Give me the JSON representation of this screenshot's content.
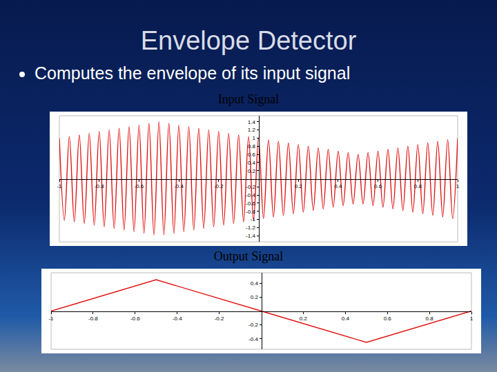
{
  "title": "Envelope Detector",
  "bullets": [
    "Computes the envelope of its input signal"
  ],
  "chart_data": [
    {
      "type": "line",
      "title": "Input Signal",
      "color": "#e01010",
      "line_style": "smooth",
      "grid": false,
      "x": [
        -1,
        -0.975,
        -0.95,
        -0.925,
        -0.9,
        -0.875,
        -0.85,
        -0.825,
        -0.8,
        -0.775,
        -0.75,
        -0.725,
        -0.7,
        -0.675,
        -0.65,
        -0.625,
        -0.6,
        -0.575,
        -0.55,
        -0.525,
        -0.5,
        -0.475,
        -0.45,
        -0.425,
        -0.4,
        -0.375,
        -0.35,
        -0.325,
        -0.3,
        -0.275,
        -0.25,
        -0.225,
        -0.2,
        -0.175,
        -0.15,
        -0.125,
        -0.1,
        -0.075,
        -0.05,
        -0.025,
        0,
        0.025,
        0.05,
        0.075,
        0.1,
        0.125,
        0.15,
        0.175,
        0.2,
        0.225,
        0.25,
        0.275,
        0.3,
        0.325,
        0.35,
        0.375,
        0.4,
        0.425,
        0.45,
        0.475,
        0.5,
        0.525,
        0.55,
        0.575,
        0.6,
        0.625,
        0.65,
        0.675,
        0.7,
        0.725,
        0.75,
        0.775,
        0.8,
        0.825,
        0.85,
        0.875,
        0.9,
        0.925,
        0.95,
        0.975,
        1
      ],
      "values": [
        1,
        -1.02,
        1.04,
        -1.06,
        1.08,
        -1.1,
        1.12,
        -1.14,
        1.16,
        -1.18,
        1.2,
        -1.22,
        1.24,
        -1.26,
        1.28,
        -1.3,
        1.32,
        -1.34,
        1.36,
        -1.38,
        1.4,
        -1.38,
        1.36,
        -1.34,
        1.32,
        -1.3,
        1.28,
        -1.26,
        1.24,
        -1.22,
        1.2,
        -1.18,
        1.16,
        -1.14,
        1.12,
        -1.1,
        1.08,
        -1.06,
        1.04,
        -1.02,
        1,
        -0.98,
        0.96,
        -0.94,
        0.92,
        -0.9,
        0.88,
        -0.86,
        0.84,
        -0.82,
        0.8,
        -0.78,
        0.76,
        -0.74,
        0.72,
        -0.7,
        0.68,
        -0.66,
        0.64,
        -0.62,
        0.6,
        -0.62,
        0.64,
        -0.66,
        0.68,
        -0.7,
        0.72,
        -0.74,
        0.76,
        -0.78,
        0.8,
        -0.82,
        0.84,
        -0.86,
        0.88,
        -0.9,
        0.92,
        -0.94,
        0.96,
        -0.98,
        1
      ],
      "xlim": [
        -1,
        1
      ],
      "xticks": [
        -1,
        -0.8,
        -0.6,
        -0.4,
        -0.2,
        0.2,
        0.4,
        0.6,
        0.8,
        1
      ],
      "ylim": [
        -1.55,
        1.55
      ],
      "yticks": [
        -1.4,
        -1.2,
        -1,
        -0.8,
        -0.6,
        -0.4,
        -0.2,
        0.2,
        0.4,
        0.6,
        0.8,
        1,
        1.2,
        1.4
      ]
    },
    {
      "type": "line",
      "title": "Output Signal",
      "color": "#e01010",
      "line_style": "straight",
      "grid": false,
      "x": [
        -1,
        -0.5,
        0,
        0.5,
        1
      ],
      "values": [
        0,
        0.45,
        0,
        -0.45,
        0
      ],
      "xlim": [
        -1,
        1
      ],
      "xticks": [
        -1,
        -0.8,
        -0.6,
        -0.4,
        -0.2,
        0.2,
        0.4,
        0.6,
        0.8,
        1
      ],
      "ylim": [
        -0.55,
        0.55
      ],
      "yticks": [
        -0.4,
        -0.2,
        0.2,
        0.4
      ]
    }
  ]
}
